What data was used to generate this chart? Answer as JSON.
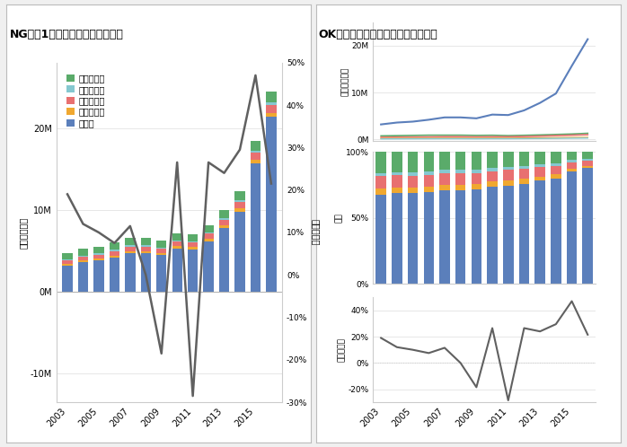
{
  "years": [
    2003,
    2004,
    2005,
    2006,
    2007,
    2008,
    2009,
    2010,
    2011,
    2012,
    2013,
    2014,
    2015,
    2016
  ],
  "asia": [
    3200000,
    3600000,
    3800000,
    4200000,
    4700000,
    4700000,
    4500000,
    5300000,
    5200000,
    6200000,
    7800000,
    9800000,
    15700000,
    21400000
  ],
  "oceania": [
    200000,
    220000,
    230000,
    240000,
    260000,
    260000,
    240000,
    270000,
    260000,
    300000,
    330000,
    360000,
    400000,
    430000
  ],
  "europe": [
    450000,
    480000,
    500000,
    530000,
    580000,
    580000,
    530000,
    570000,
    560000,
    620000,
    700000,
    800000,
    900000,
    1000000
  ],
  "s_america": [
    120000,
    130000,
    140000,
    150000,
    160000,
    160000,
    140000,
    160000,
    155000,
    175000,
    200000,
    230000,
    260000,
    290000
  ],
  "n_america": [
    750000,
    800000,
    850000,
    900000,
    900000,
    900000,
    850000,
    880000,
    800000,
    870000,
    950000,
    1050000,
    1150000,
    1300000
  ],
  "yoy": [
    0.19,
    0.12,
    0.1,
    0.075,
    0.115,
    0.0,
    -0.185,
    0.265,
    -0.285,
    0.265,
    0.24,
    0.295,
    0.47,
    0.215
  ],
  "colors": {
    "asia": "#5b7fbb",
    "oceania": "#f0a830",
    "europe": "#e87070",
    "s_america": "#85c8d0",
    "n_america": "#5aab6a",
    "line": "#606060"
  },
  "ng_title": "NG例：1つのグラフに多くの情報",
  "ok_title": "OK例：意味合いごとでグラフを分離",
  "left_ylabel": "訪日外国人数",
  "right_ylabel": "前年比増率",
  "ratio_ylabel": "割合",
  "growth_ylabel": "前年比増率",
  "legend_labels": [
    "北アメリカ",
    "南アメリカ",
    "ヨーロッパ",
    "オセアニア",
    "アジア"
  ],
  "bg_color": "#f0f0f0",
  "panel_bg": "#ffffff"
}
